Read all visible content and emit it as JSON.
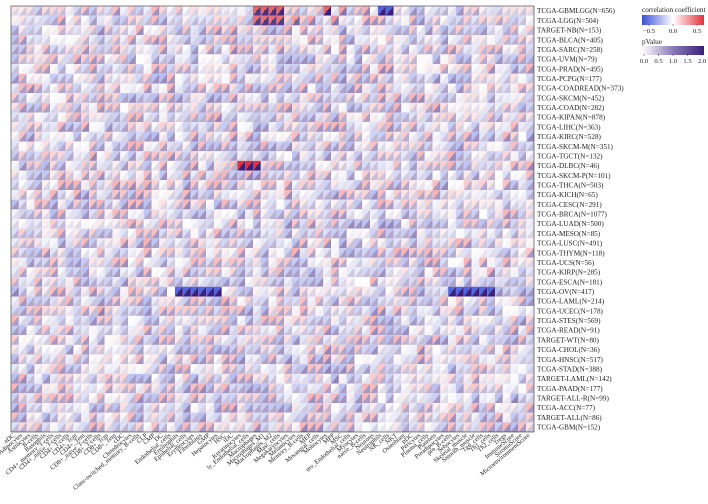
{
  "chart_data": {
    "type": "heatmap",
    "title": "",
    "rows": [
      "TCGA-GBMLGG(N=656)",
      "TCGA-LGG(N=504)",
      "TARGET-NB(N=153)",
      "TCGA-BLCA(N=405)",
      "TCGA-SARC(N=258)",
      "TCGA-UVM(N=79)",
      "TCGA-PRAD(N=495)",
      "TCGA-PCPG(N=177)",
      "TCGA-COADREAD(N=373)",
      "TCGA-SKCM(N=452)",
      "TCGA-COAD(N=282)",
      "TCGA-KIPAN(N=878)",
      "TCGA-LIHC(N=363)",
      "TCGA-KIRC(N=528)",
      "TCGA-SKCM-M(N=351)",
      "TCGA-TGCT(N=132)",
      "TCGA-DLBC(N=46)",
      "TCGA-SKCM-P(N=101)",
      "TCGA-THCA(N=503)",
      "TCGA-KICH(N=65)",
      "TCGA-CESC(N=291)",
      "TCGA-BRCA(N=1077)",
      "TCGA-LUAD(N=500)",
      "TCGA-MESO(N=85)",
      "TCGA-LUSC(N=491)",
      "TCGA-THYM(N=118)",
      "TCGA-UCS(N=56)",
      "TCGA-KIRP(N=285)",
      "TCGA-ESCA(N=181)",
      "TCGA-OV(N=417)",
      "TCGA-LAML(N=214)",
      "TCGA-UCEC(N=178)",
      "TCGA-STES(N=569)",
      "TCGA-READ(N=91)",
      "TARGET-WT(N=80)",
      "TCGA-CHOL(N=36)",
      "TCGA-HNSC(N=517)",
      "TCGA-STAD(N=388)",
      "TARGET-LAML(N=142)",
      "TCGA-PAAD(N=177)",
      "TARGET-ALL-R(N=99)",
      "TCGA-ACC(N=77)",
      "TARGET-ALL(N=86)",
      "TCGA-GBM(N=152)"
    ],
    "columns_visible": [
      "aDC",
      "Adipocytes",
      "Astrocytes",
      "B-cells",
      "Basophils",
      "CD4+_memory_T-cells",
      "CD4+_naive_T-cells",
      "CD4+_T-cells",
      "CD4+_Tcm",
      "CD4+_Tem",
      "CD8+_naive_T-cells",
      "CD8+_T-cells",
      "CD8+_Tcm",
      "CD8+_Tem",
      "cDC",
      "Chondrocytes",
      "Class-switched_memory_B-cells",
      "CLP",
      "CMP",
      "DC",
      "Endothelial_cells",
      "Eosinophils",
      "Epithelial_cells",
      "Erythrocytes",
      "Fibroblasts",
      "GMP",
      "Hepatocytes",
      "HSC",
      "iDC",
      "Keratinocytes",
      "ly_Endothelial_cells",
      "Macrophages",
      "Macrophages_M1",
      "Macrophages_M2",
      "Mast_cells",
      "Megakaryocytes",
      "Melanocytes",
      "Memory_B-cells",
      "MEP",
      "Mesangial_cells",
      "Monocytes",
      "MPP",
      "MSC",
      "mv_Endothelial_cells",
      "Myocytes",
      "naive_B-cells",
      "Neurons",
      "Neutrophils",
      "NK_cells",
      "NKT",
      "Osteoblast",
      "pDC",
      "Pericytes",
      "Plasma_cells",
      "Platelets",
      "Preadipocytes",
      "pro_B-cells",
      "Sebocytes",
      "Skeletal_muscle",
      "Smooth_muscle",
      "Tgd_cells",
      "Th1_cells",
      "Th2_cells",
      "Tregs",
      "ImmuneScore",
      "StromaScore",
      "MicroenvironmentScore"
    ],
    "n_columns": 67,
    "cell_encoding": "each cell split diagonally: upper-left triangle = correlation coefficient, lower-right triangle = pValue; '*' marks significance",
    "legend": {
      "correlation_title": "correlation coefficient",
      "correlation_ticks": [
        "−0.5",
        "0.0",
        "0.5"
      ],
      "correlation_range": [
        -0.8,
        0.8
      ],
      "correlation_colors": {
        "negative": "#3b4fd8",
        "zero": "#ffffff",
        "positive": "#e8303a"
      },
      "pvalue_title": "pValue",
      "pvalue_ticks": [
        "0.0",
        "0.5",
        "1.0",
        "1.5",
        "2.0"
      ],
      "pvalue_range": [
        0,
        2.0
      ],
      "pvalue_colors": {
        "low": "#ffffff",
        "high": "#3a1f7a"
      },
      "placement": "top-right"
    },
    "highlights": {
      "strong_positive": [
        {
          "row": "TCGA-DLBC(N=46)",
          "columns": [
            "Keratinocytes",
            "ly_Endothelial_cells",
            "Macrophages"
          ],
          "value": 0.8
        },
        {
          "row": "TCGA-GBMLGG(N=656)",
          "columns": [
            "Macrophages",
            "Macrophages_M1",
            "Macrophages_M2",
            "Mast_cells",
            "Monocytes"
          ],
          "value": 0.6
        },
        {
          "row": "TCGA-LGG(N=504)",
          "columns": [
            "Macrophages",
            "Macrophages_M1",
            "Macrophages_M2",
            "Mast_cells"
          ],
          "value": 0.55
        }
      ],
      "strong_negative": [
        {
          "row": "TCGA-OV(N=417)",
          "columns": [
            "Eosinophils",
            "Epithelial_cells",
            "Erythrocytes",
            "Fibroblasts",
            "GMP",
            "Hepatocytes",
            "pro_B-cells",
            "Sebocytes",
            "Skeletal_muscle",
            "Smooth_muscle",
            "Tgd_cells",
            "Th1_cells"
          ],
          "value": -0.7
        },
        {
          "row": "TCGA-GBMLGG(N=656)",
          "columns": [
            "Neutrophils",
            "NK_cells"
          ],
          "value": -0.7
        }
      ]
    },
    "grid": false
  }
}
